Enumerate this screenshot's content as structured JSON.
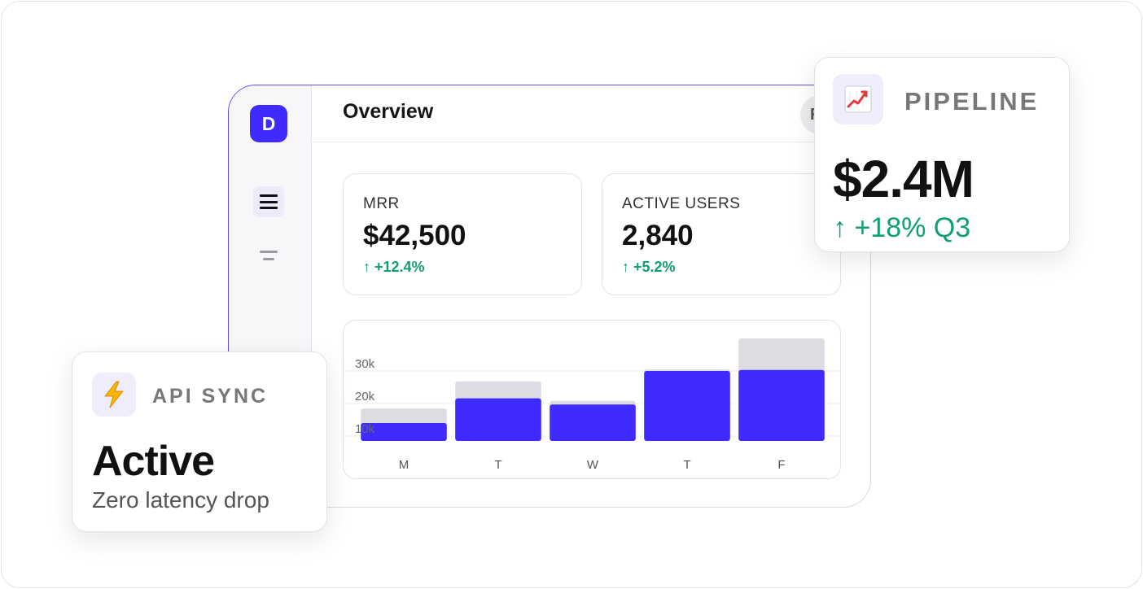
{
  "sidebar": {
    "logo_letter": "D",
    "items": [
      {
        "name": "menu",
        "icon": "hamburger-icon",
        "active": true
      },
      {
        "name": "filter",
        "icon": "filter-lines-icon",
        "active": false
      }
    ]
  },
  "header": {
    "title": "Overview",
    "avatar_initial": "F"
  },
  "stats": [
    {
      "label": "MRR",
      "value": "$42,500",
      "delta": "↑ +12.4%"
    },
    {
      "label": "ACTIVE USERS",
      "value": "2,840",
      "delta": "↑ +5.2%"
    }
  ],
  "chart_data": {
    "type": "bar",
    "categories": [
      "M",
      "T",
      "W",
      "T",
      "F"
    ],
    "series": [
      {
        "values": [
          18500,
          26800,
          20800,
          30500,
          40000
        ],
        "color": "#dcdce2"
      },
      {
        "values": [
          14000,
          21600,
          19700,
          30000,
          30300
        ],
        "color": "#3f2bff"
      }
    ],
    "y_ticks": [
      "10k",
      "20k",
      "30k"
    ],
    "y_tick_values": [
      10000,
      20000,
      30000
    ],
    "ylim": [
      8500,
      42000
    ],
    "grid": true
  },
  "pipeline": {
    "icon": "chart-up-icon",
    "kicker": "PIPELINE",
    "value": "$2.4M",
    "delta": "↑ +18% Q3"
  },
  "api_sync": {
    "icon": "lightning-icon",
    "kicker": "API SYNC",
    "status": "Active",
    "subtitle": "Zero latency drop"
  },
  "colors": {
    "accent": "#3f2bff",
    "positive": "#0ea06e",
    "bar_muted": "#dcdce2"
  }
}
